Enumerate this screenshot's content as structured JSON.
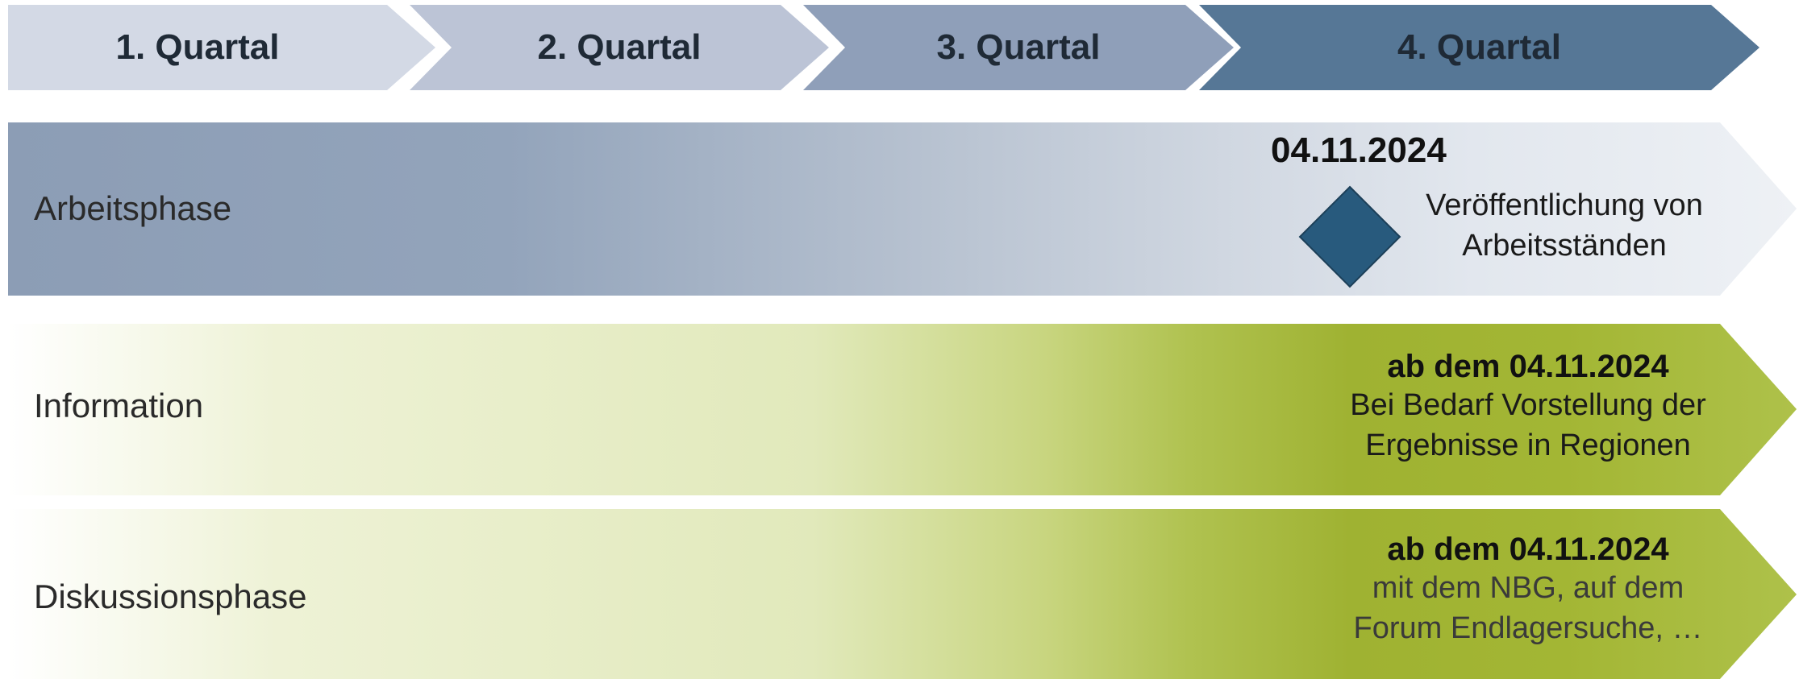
{
  "quarters": [
    "1. Quartal",
    "2. Quartal",
    "3. Quartal",
    "4. Quartal"
  ],
  "rows": {
    "arbeitsphase": {
      "label": "Arbeitsphase",
      "date": "04.11.2024",
      "milestone_icon": "diamond-icon",
      "desc_line1": "Veröffentlichung von",
      "desc_line2": "Arbeitsständen"
    },
    "information": {
      "label": "Information",
      "date": "ab dem 04.11.2024",
      "desc_line1": "Bei Bedarf Vorstellung der",
      "desc_line2": "Ergebnisse in Regionen"
    },
    "diskussionsphase": {
      "label": "Diskussionsphase",
      "date": "ab dem 04.11.2024",
      "desc_line1": "mit dem NBG, auf dem",
      "desc_line2": "Forum Endlagersuche, …"
    }
  },
  "colors": {
    "quarter1": "#d3d9e5",
    "quarter2": "#bcc4d6",
    "quarter3": "#8f9fb9",
    "quarter4": "#567796",
    "diamond": "#285a7d",
    "green_accent": "#9fb232"
  }
}
